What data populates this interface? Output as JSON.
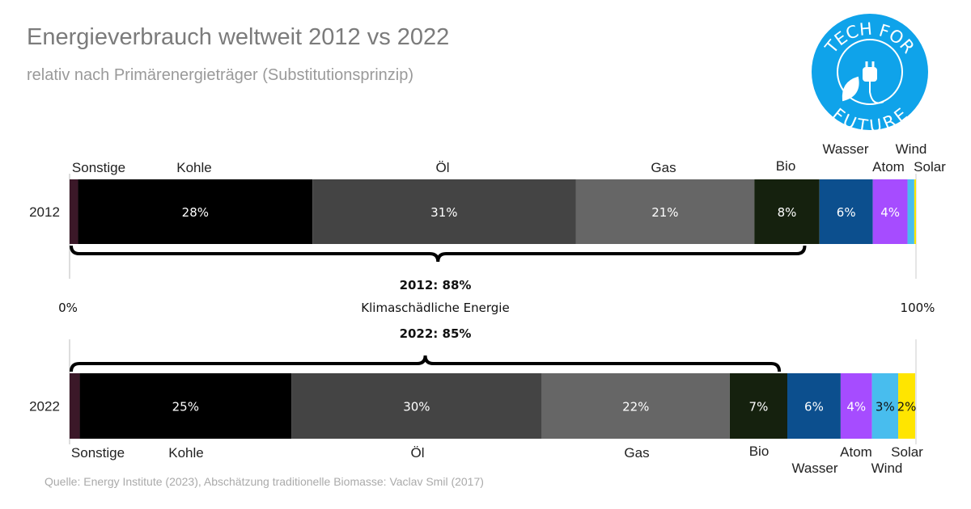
{
  "title": "Energieverbrauch weltweit 2012 vs 2022",
  "subtitle": "relativ nach Primärenergieträger (Substitutionsprinzip)",
  "source": "Quelle: Energy Institute (2023), Abschätzung traditionelle Biomasse: Vaclav Smil (2017)",
  "logo": {
    "text_top": "TECH FOR",
    "text_bottom": "FUTURE",
    "color": "#0fa3ea",
    "icon": "plug-leaf-icon"
  },
  "chart_data": {
    "type": "bar",
    "orientation": "horizontal",
    "stacked": true,
    "categories": [
      "2012",
      "2022"
    ],
    "xlim": [
      0,
      100
    ],
    "axis_labels": {
      "min": "0%",
      "max": "100%"
    },
    "series": [
      {
        "name": "Sonstige",
        "values": [
          1.0,
          1.2
        ],
        "labels": [
          "",
          ""
        ],
        "color": "#3b1828",
        "text_color": "#ffffff"
      },
      {
        "name": "Kohle",
        "values": [
          27.7,
          25.0
        ],
        "labels": [
          "28%",
          "25%"
        ],
        "color": "#000000",
        "text_color": "#ffffff"
      },
      {
        "name": "Öl",
        "values": [
          31.1,
          29.6
        ],
        "labels": [
          "31%",
          "30%"
        ],
        "color": "#444444",
        "text_color": "#ffffff"
      },
      {
        "name": "Gas",
        "values": [
          21.1,
          22.2
        ],
        "labels": [
          "21%",
          "22%"
        ],
        "color": "#666666",
        "text_color": "#ffffff"
      },
      {
        "name": "Bio",
        "values": [
          7.7,
          6.8
        ],
        "labels": [
          "8%",
          "7%"
        ],
        "color": "#15210e",
        "text_color": "#ffffff"
      },
      {
        "name": "Wasser",
        "values": [
          6.3,
          6.3
        ],
        "labels": [
          "6%",
          "6%"
        ],
        "color": "#0c4f8e",
        "text_color": "#ffffff"
      },
      {
        "name": "Atom",
        "values": [
          4.1,
          3.7
        ],
        "labels": [
          "4%",
          "4%"
        ],
        "color": "#a64cff",
        "text_color": "#ffffff"
      },
      {
        "name": "Wind",
        "values": [
          0.8,
          3.1
        ],
        "labels": [
          "",
          "3%"
        ],
        "color": "#48bdee",
        "text_color": "#111111"
      },
      {
        "name": "Solar",
        "values": [
          0.2,
          2.0
        ],
        "labels": [
          "",
          "2%"
        ],
        "color": "#ffe500",
        "text_color": "#111111"
      }
    ],
    "annotations": {
      "group_label": "Klimaschädliche Energie",
      "values": [
        "2012: 88%",
        "2022: 85%"
      ],
      "brace_share": [
        88,
        85
      ]
    }
  }
}
